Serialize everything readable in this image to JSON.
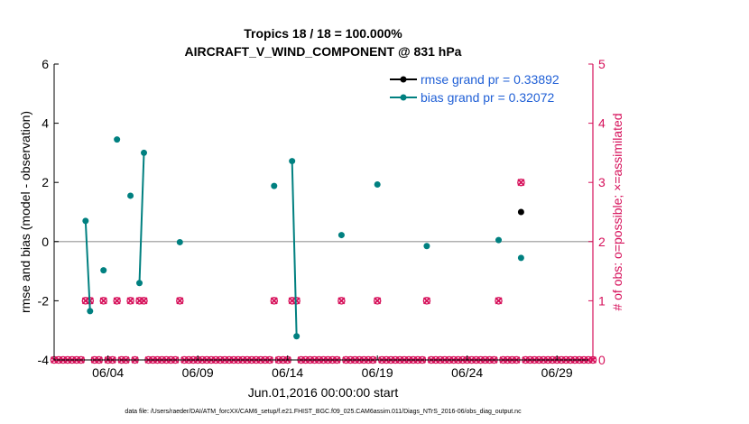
{
  "chart_data": {
    "type": "line",
    "title": "Tropics 18 / 18 = 100.000%",
    "subtitle": "AIRCRAFT_V_WIND_COMPONENT @ 831 hPa",
    "xlabel": "Jun.01,2016 00:00:00 start",
    "ylabel_left": "rmse and bias (model - observation)",
    "ylabel_right": "# of obs: o=possible; ×=assimilated",
    "footnote": "data file: /Users/raeder/DAI/ATM_forcXX/CAM6_setup/f.e21.FHIST_BGC.f09_025.CAM6assim.011/Diags_NTrS_2016-06/obs_diag_output.nc",
    "xlim": [
      1,
      31
    ],
    "ylim_left": [
      -4,
      6
    ],
    "ylim_right": [
      0,
      5
    ],
    "x_ticks": [
      4,
      9,
      14,
      19,
      24,
      29
    ],
    "x_tick_labels": [
      "06/04",
      "06/09",
      "06/14",
      "06/19",
      "06/24",
      "06/29"
    ],
    "y_left_ticks": [
      "-4",
      "-2",
      "0",
      "2",
      "4",
      "6"
    ],
    "y_right_ticks": [
      "0",
      "1",
      "2",
      "3",
      "4",
      "5"
    ],
    "zero_line": 0,
    "colors": {
      "rmse": "#000000",
      "bias": "#008080",
      "obs": "#d6105a",
      "legend_text": "#1f5fd6",
      "zero_line": "#b0b0b0"
    },
    "series": [
      {
        "name": "rmse grand pr = 0.33892",
        "axis": "left",
        "x": [
          27.0
        ],
        "y": [
          1.0
        ]
      },
      {
        "name": "bias grand pr = 0.32072",
        "axis": "left",
        "segments": [
          {
            "x": [
              2.75,
              3.0
            ],
            "y": [
              0.7,
              -2.35
            ]
          },
          {
            "x": [
              3.75
            ],
            "y": [
              -0.97
            ]
          },
          {
            "x": [
              4.5
            ],
            "y": [
              3.45
            ]
          },
          {
            "x": [
              5.25
            ],
            "y": [
              1.55
            ]
          },
          {
            "x": [
              5.75,
              6.0
            ],
            "y": [
              -1.4,
              3.0
            ]
          },
          {
            "x": [
              8.0
            ],
            "y": [
              -0.02
            ]
          },
          {
            "x": [
              13.25
            ],
            "y": [
              1.88
            ]
          },
          {
            "x": [
              14.25,
              14.5
            ],
            "y": [
              2.72,
              -3.2
            ]
          },
          {
            "x": [
              17.0
            ],
            "y": [
              0.22
            ]
          },
          {
            "x": [
              19.0
            ],
            "y": [
              1.93
            ]
          },
          {
            "x": [
              21.75
            ],
            "y": [
              -0.15
            ]
          },
          {
            "x": [
              25.75
            ],
            "y": [
              0.05
            ]
          },
          {
            "x": [
              27.0
            ],
            "y": [
              -0.55
            ]
          }
        ]
      },
      {
        "name": "obs possible",
        "axis": "right",
        "marker": "o",
        "x": [
          1.0,
          1.25,
          1.5,
          1.75,
          2.0,
          2.25,
          2.5,
          2.75,
          3.0,
          3.25,
          3.5,
          3.75,
          4.0,
          4.25,
          4.5,
          4.75,
          5.0,
          5.25,
          5.5,
          5.75,
          6.0,
          6.25,
          6.5,
          6.75,
          7.0,
          7.25,
          7.5,
          7.75,
          8.0,
          8.25,
          8.5,
          8.75,
          9.0,
          9.25,
          9.5,
          9.75,
          10.0,
          10.25,
          10.5,
          10.75,
          11.0,
          11.25,
          11.5,
          11.75,
          12.0,
          12.25,
          12.5,
          12.75,
          13.0,
          13.25,
          13.5,
          13.75,
          14.0,
          14.25,
          14.5,
          14.75,
          15.0,
          15.25,
          15.5,
          15.75,
          16.0,
          16.25,
          16.5,
          16.75,
          17.0,
          17.25,
          17.5,
          17.75,
          18.0,
          18.25,
          18.5,
          18.75,
          19.0,
          19.25,
          19.5,
          19.75,
          20.0,
          20.25,
          20.5,
          20.75,
          21.0,
          21.25,
          21.5,
          21.75,
          22.0,
          22.25,
          22.5,
          22.75,
          23.0,
          23.25,
          23.5,
          23.75,
          24.0,
          24.25,
          24.5,
          24.75,
          25.0,
          25.25,
          25.5,
          25.75,
          26.0,
          26.25,
          26.5,
          26.75,
          27.0,
          27.25,
          27.5,
          27.75,
          28.0,
          28.25,
          28.5,
          28.75,
          29.0,
          29.25,
          29.5,
          29.75,
          30.0,
          30.25,
          30.5,
          30.75,
          31.0
        ],
        "y": [
          0,
          0,
          0,
          0,
          0,
          0,
          0,
          1,
          1,
          0,
          0,
          1,
          0,
          0,
          1,
          0,
          0,
          1,
          0,
          1,
          1,
          0,
          0,
          0,
          0,
          0,
          0,
          0,
          1,
          0,
          0,
          0,
          0,
          0,
          0,
          0,
          0,
          0,
          0,
          0,
          0,
          0,
          0,
          0,
          0,
          0,
          0,
          0,
          0,
          1,
          0,
          0,
          0,
          1,
          1,
          0,
          0,
          0,
          0,
          0,
          0,
          0,
          0,
          0,
          1,
          0,
          0,
          0,
          0,
          0,
          0,
          0,
          1,
          0,
          0,
          0,
          0,
          0,
          0,
          0,
          0,
          0,
          0,
          1,
          0,
          0,
          0,
          0,
          0,
          0,
          0,
          0,
          0,
          0,
          0,
          0,
          0,
          0,
          0,
          1,
          0,
          0,
          0,
          0,
          3,
          0,
          0,
          0,
          0,
          0,
          0,
          0,
          0,
          0,
          0,
          0,
          0,
          0,
          0,
          0,
          0
        ]
      },
      {
        "name": "obs assimilated",
        "axis": "right",
        "marker": "x",
        "x": [
          1.0,
          1.25,
          1.5,
          1.75,
          2.0,
          2.25,
          2.5,
          2.75,
          3.0,
          3.25,
          3.5,
          3.75,
          4.0,
          4.25,
          4.5,
          4.75,
          5.0,
          5.25,
          5.5,
          5.75,
          6.0,
          6.25,
          6.5,
          6.75,
          7.0,
          7.25,
          7.5,
          7.75,
          8.0,
          8.25,
          8.5,
          8.75,
          9.0,
          9.25,
          9.5,
          9.75,
          10.0,
          10.25,
          10.5,
          10.75,
          11.0,
          11.25,
          11.5,
          11.75,
          12.0,
          12.25,
          12.5,
          12.75,
          13.0,
          13.25,
          13.5,
          13.75,
          14.0,
          14.25,
          14.5,
          14.75,
          15.0,
          15.25,
          15.5,
          15.75,
          16.0,
          16.25,
          16.5,
          16.75,
          17.0,
          17.25,
          17.5,
          17.75,
          18.0,
          18.25,
          18.5,
          18.75,
          19.0,
          19.25,
          19.5,
          19.75,
          20.0,
          20.25,
          20.5,
          20.75,
          21.0,
          21.25,
          21.5,
          21.75,
          22.0,
          22.25,
          22.5,
          22.75,
          23.0,
          23.25,
          23.5,
          23.75,
          24.0,
          24.25,
          24.5,
          24.75,
          25.0,
          25.25,
          25.5,
          25.75,
          26.0,
          26.25,
          26.5,
          26.75,
          27.0,
          27.25,
          27.5,
          27.75,
          28.0,
          28.25,
          28.5,
          28.75,
          29.0,
          29.25,
          29.5,
          29.75,
          30.0,
          30.25,
          30.5,
          30.75,
          31.0
        ],
        "y": [
          0,
          0,
          0,
          0,
          0,
          0,
          0,
          1,
          1,
          0,
          0,
          1,
          0,
          0,
          1,
          0,
          0,
          1,
          0,
          1,
          1,
          0,
          0,
          0,
          0,
          0,
          0,
          0,
          1,
          0,
          0,
          0,
          0,
          0,
          0,
          0,
          0,
          0,
          0,
          0,
          0,
          0,
          0,
          0,
          0,
          0,
          0,
          0,
          0,
          1,
          0,
          0,
          0,
          1,
          1,
          0,
          0,
          0,
          0,
          0,
          0,
          0,
          0,
          0,
          1,
          0,
          0,
          0,
          0,
          0,
          0,
          0,
          1,
          0,
          0,
          0,
          0,
          0,
          0,
          0,
          0,
          0,
          0,
          1,
          0,
          0,
          0,
          0,
          0,
          0,
          0,
          0,
          0,
          0,
          0,
          0,
          0,
          0,
          0,
          1,
          0,
          0,
          0,
          0,
          3,
          0,
          0,
          0,
          0,
          0,
          0,
          0,
          0,
          0,
          0,
          0,
          0,
          0,
          0,
          0,
          0
        ]
      }
    ]
  }
}
